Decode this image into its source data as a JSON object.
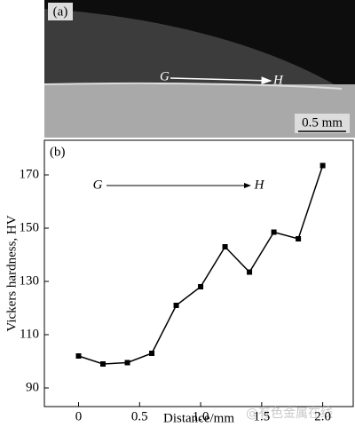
{
  "micrograph": {
    "label": "(a)",
    "start": "G",
    "end": "H",
    "scale_bar": "0.5 mm"
  },
  "chart_data": {
    "type": "line",
    "panel_label": "(b)",
    "xlabel": "Distance/mm",
    "ylabel": "Vickers hardness, HV",
    "annotations": [
      "G",
      "H"
    ],
    "x": [
      0,
      0.2,
      0.4,
      0.6,
      0.8,
      1.0,
      1.2,
      1.4,
      1.6,
      1.8,
      2.0
    ],
    "values": [
      102,
      99,
      99.5,
      103,
      121,
      128,
      143,
      133.5,
      148.5,
      146,
      173.5
    ],
    "color": "#000000",
    "xlim": [
      -0.28,
      2.25
    ],
    "ylim": [
      83,
      183
    ],
    "xticks": [
      0,
      0.5,
      {
        "value": 1,
        "label": "1.0"
      },
      1.5,
      {
        "value": 2,
        "label": "2.0"
      }
    ],
    "yticks": [
      90,
      110,
      130,
      150,
      170
    ]
  },
  "watermark": "@有色金属在线"
}
